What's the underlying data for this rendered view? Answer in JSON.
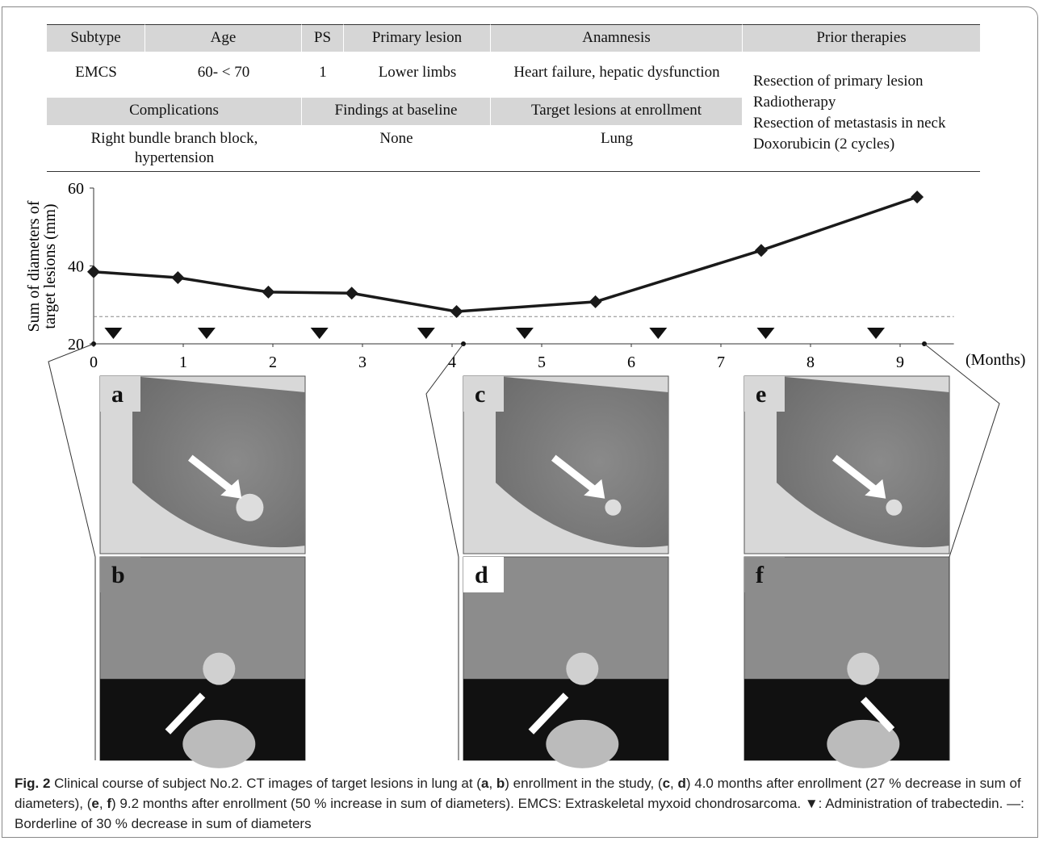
{
  "table": {
    "header1": [
      "Subtype",
      "Age",
      "PS",
      "Primary lesion",
      "Anamnesis",
      "Prior therapies"
    ],
    "row1": [
      "EMCS",
      "60- < 70",
      "1",
      "Lower limbs",
      "Heart failure, hepatic dysfunction"
    ],
    "prior_therapies": [
      "Resection of primary lesion",
      "Radiotherapy",
      "Resection of metastasis in neck",
      "Doxorubicin (2 cycles)"
    ],
    "header2": [
      "Complications",
      "Findings at baseline",
      "Target lesions at enrollment"
    ],
    "row2": [
      "Right bundle branch block, hypertension",
      "None",
      "Lung"
    ]
  },
  "chart_data": {
    "type": "line",
    "y_label": [
      "Sum of diameters of",
      "target lesions (mm)"
    ],
    "x_label": "(Months)",
    "x": [
      0,
      0.94,
      1.95,
      2.88,
      4.05,
      5.6,
      7.45,
      9.19
    ],
    "series": [
      {
        "color": "#1a1a1a",
        "values": [
          38.5,
          37.0,
          33.3,
          33.0,
          28.3,
          30.8,
          44.0,
          57.7
        ]
      }
    ],
    "threshold": 27,
    "administrations": [
      0.22,
      1.26,
      2.52,
      3.71,
      4.81,
      6.3,
      7.5,
      8.73
    ],
    "xlim": [
      0,
      9.6
    ],
    "xticks": [
      0,
      1,
      2,
      3,
      4,
      5,
      6,
      7,
      8,
      9
    ],
    "ylim": [
      20,
      60
    ],
    "yticks": [
      20,
      40,
      60
    ]
  },
  "panels": [
    {
      "label": "a"
    },
    {
      "label": "b"
    },
    {
      "label": "c"
    },
    {
      "label": "d"
    },
    {
      "label": "e"
    },
    {
      "label": "f"
    }
  ],
  "caption": [
    {
      "text": "Fig. 2",
      "bold": true
    },
    {
      "text": " Clinical course of subject No.2. CT images of target lesions in lung at (",
      "bold": false
    },
    {
      "text": "a",
      "bold": true
    },
    {
      "text": ", ",
      "bold": false
    },
    {
      "text": "b",
      "bold": true
    },
    {
      "text": ") enrollment in the study, (",
      "bold": false
    },
    {
      "text": "c",
      "bold": true
    },
    {
      "text": ", ",
      "bold": false
    },
    {
      "text": "d",
      "bold": true
    },
    {
      "text": ") 4.0 months after enrollment (27 % decrease in sum of diameters), (",
      "bold": false
    },
    {
      "text": "e",
      "bold": true
    },
    {
      "text": ", ",
      "bold": false
    },
    {
      "text": "f",
      "bold": true
    },
    {
      "text": ") 9.2 months after enrollment (50 % increase in sum of diameters). EMCS: Extraskeletal myxoid chondrosarcoma. ▼: Administration of trabectedin. —: Borderline of 30 % decrease in sum of diameters",
      "bold": false
    }
  ]
}
